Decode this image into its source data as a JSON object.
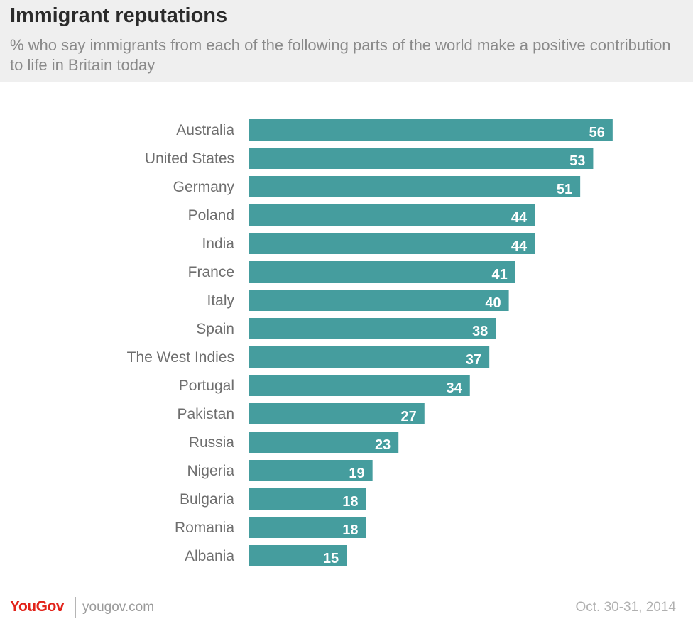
{
  "header": {
    "title": "Immigrant reputations",
    "subtitle": "% who say immigrants from each of the following parts of the world make a positive contribution to life in Britain today"
  },
  "footer": {
    "logo": "YouGov",
    "url": "yougov.com",
    "date": "Oct. 30-31, 2014"
  },
  "colors": {
    "bar": "#459d9e",
    "header_bg": "#efefef",
    "logo": "#e2231a"
  },
  "chart_data": {
    "type": "bar",
    "orientation": "horizontal",
    "title": "Immigrant reputations",
    "categories": [
      "Australia",
      "United States",
      "Germany",
      "Poland",
      "India",
      "France",
      "Italy",
      "Spain",
      "The West Indies",
      "Portugal",
      "Pakistan",
      "Russia",
      "Nigeria",
      "Bulgaria",
      "Romania",
      "Albania"
    ],
    "values": [
      56,
      53,
      51,
      44,
      44,
      41,
      40,
      38,
      37,
      34,
      27,
      23,
      19,
      18,
      18,
      15
    ],
    "xlim": [
      0,
      68
    ],
    "grid": false,
    "legend": "none"
  }
}
